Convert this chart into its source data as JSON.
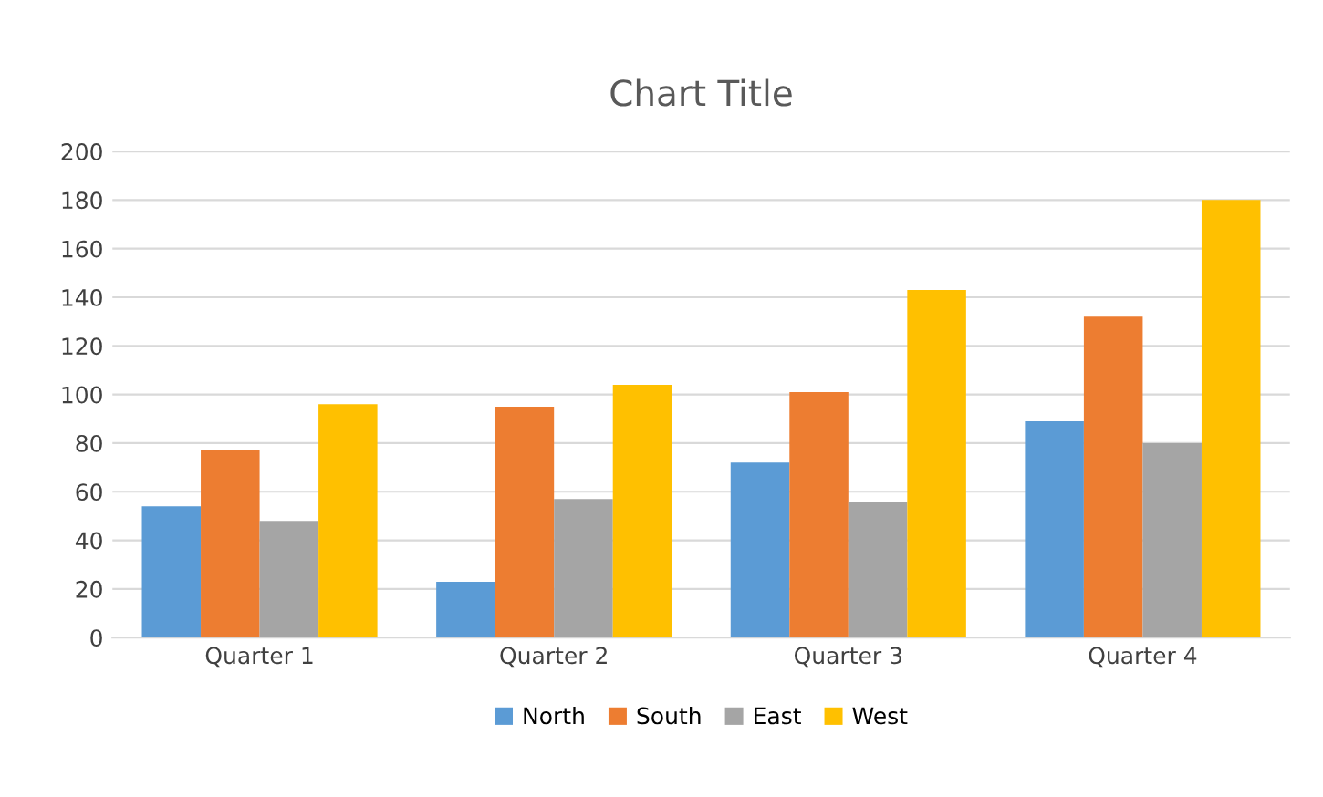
{
  "chart_data": {
    "type": "bar",
    "title": "Chart Title",
    "categories": [
      "Quarter 1",
      "Quarter 2",
      "Quarter 3",
      "Quarter 4"
    ],
    "series": [
      {
        "name": "North",
        "color": "#5b9bd5",
        "values": [
          54,
          23,
          72,
          89
        ]
      },
      {
        "name": "South",
        "color": "#ed7d31",
        "values": [
          77,
          95,
          101,
          132
        ]
      },
      {
        "name": "East",
        "color": "#a5a5a5",
        "values": [
          48,
          57,
          56,
          80
        ]
      },
      {
        "name": "West",
        "color": "#ffc000",
        "values": [
          96,
          104,
          143,
          180
        ]
      }
    ],
    "ylim": [
      0,
      200
    ],
    "yticks": [
      0,
      20,
      40,
      60,
      80,
      100,
      120,
      140,
      160,
      180,
      200
    ],
    "grid": "y",
    "legend": "bottom"
  }
}
